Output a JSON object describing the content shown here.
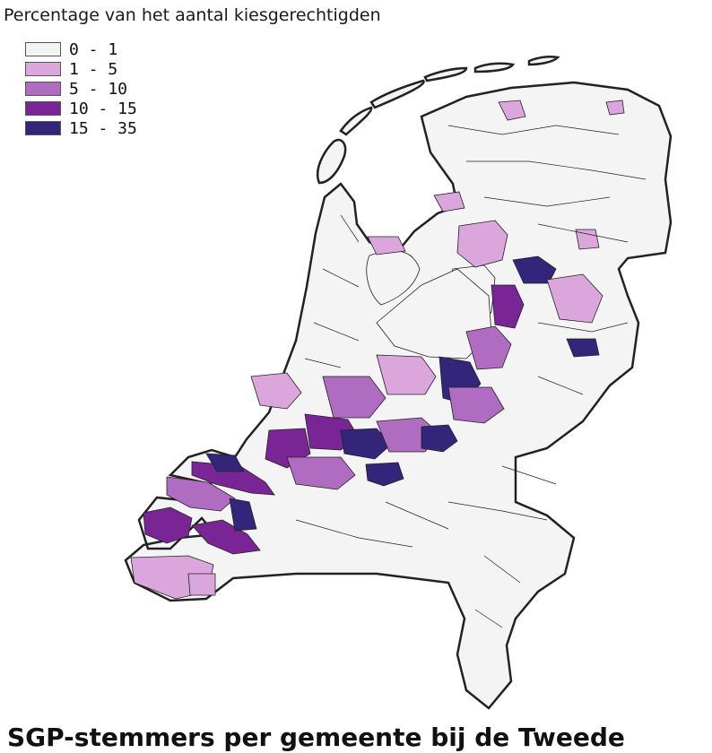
{
  "map": {
    "legend_title": "Percentage van het aantal kiesgerechtigden",
    "legend": [
      {
        "label": "0 - 1",
        "color": "#f4f4f4"
      },
      {
        "label": "1 - 5",
        "color": "#dba6dc"
      },
      {
        "label": "5 - 10",
        "color": "#b06cc0"
      },
      {
        "label": "10 - 15",
        "color": "#7a2596"
      },
      {
        "label": "15 - 35",
        "color": "#33267a"
      }
    ],
    "boundary_color": "#222222",
    "caption": "SGP-stemmers per gemeente bij de Tweede"
  }
}
